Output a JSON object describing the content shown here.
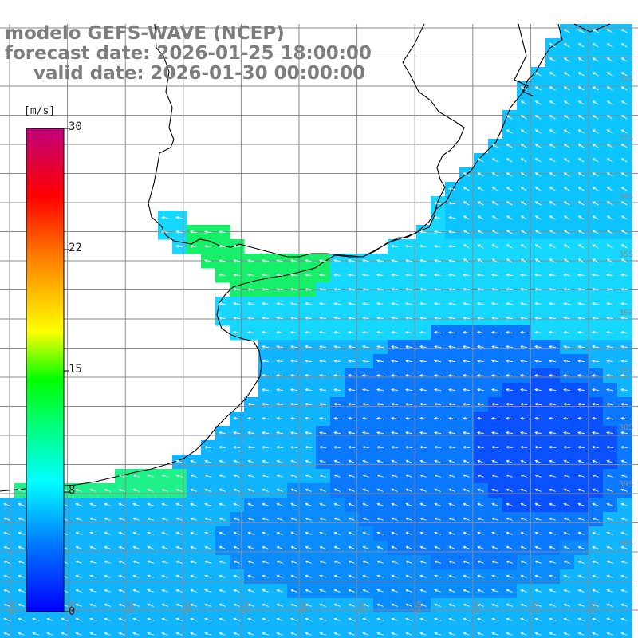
{
  "title": {
    "line1": "modelo GEFS-WAVE (NCEP)",
    "line2": "forecast date: 2026-01-25 18:00:00",
    "line3": "valid date: 2026-01-30 00:00:00"
  },
  "colorbar": {
    "unit": "[m/s]",
    "min": 0,
    "max": 30,
    "ticks": [
      "30",
      "22",
      "15",
      "8",
      "0"
    ],
    "stops": [
      "#0000ff",
      "#00b4ff",
      "#00ffff",
      "#00ff00",
      "#ffff00",
      "#ff8000",
      "#ff0000",
      "#c0007a"
    ]
  },
  "colors": {
    "background": "#ffffff",
    "land": "#ffffff",
    "coastline": "#000000",
    "grid": "#8a8a8a",
    "arrows": "#ffffff",
    "title_text": "#7d7d7d"
  },
  "lat_labels": [
    "32S",
    "33S",
    "34S",
    "35S",
    "36S",
    "37S",
    "38S",
    "39S",
    "40S"
  ],
  "lon_labels": [
    "61W",
    "60W",
    "59W",
    "58W",
    "57W",
    "56W",
    "55W",
    "54W",
    "53W",
    "52W",
    "51W"
  ]
}
